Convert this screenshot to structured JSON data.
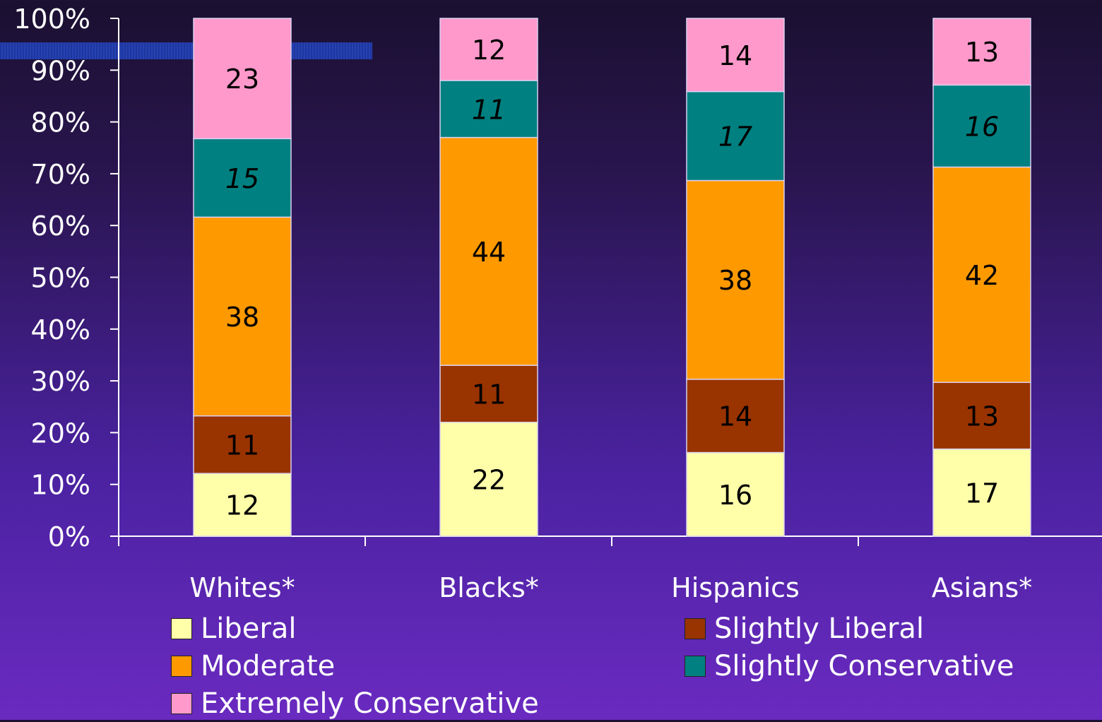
{
  "chart_data": {
    "type": "bar",
    "stacked": true,
    "percent_stacked": true,
    "categories": [
      "Whites*",
      "Blacks*",
      "Hispanics",
      "Asians*"
    ],
    "series": [
      {
        "name": "Liberal",
        "values": [
          12,
          22,
          16,
          17
        ],
        "color": "#ffffaa",
        "italic": false
      },
      {
        "name": "Slightly Liberal",
        "values": [
          11,
          11,
          14,
          13
        ],
        "color": "#993300",
        "italic": false
      },
      {
        "name": "Moderate",
        "values": [
          38,
          44,
          38,
          42
        ],
        "color": "#ff9900",
        "italic": false
      },
      {
        "name": "Slightly Conservative",
        "values": [
          15,
          11,
          17,
          16
        ],
        "color": "#008080",
        "italic": true
      },
      {
        "name": "Extremely Conservative",
        "values": [
          23,
          12,
          14,
          13
        ],
        "color": "#ff99cc",
        "italic": false
      }
    ],
    "y_ticks": [
      "0%",
      "10%",
      "20%",
      "30%",
      "40%",
      "50%",
      "60%",
      "70%",
      "80%",
      "90%",
      "100%"
    ],
    "ylim": [
      0,
      100
    ],
    "legend_position": "bottom"
  },
  "legend": {
    "items": [
      {
        "label": "Liberal",
        "color": "#ffffaa"
      },
      {
        "label": "Slightly Liberal",
        "color": "#993300"
      },
      {
        "label": "Moderate",
        "color": "#ff9900"
      },
      {
        "label": "Slightly Conservative",
        "color": "#008080"
      },
      {
        "label": "Extremely Conservative",
        "color": "#ff99cc"
      }
    ]
  }
}
